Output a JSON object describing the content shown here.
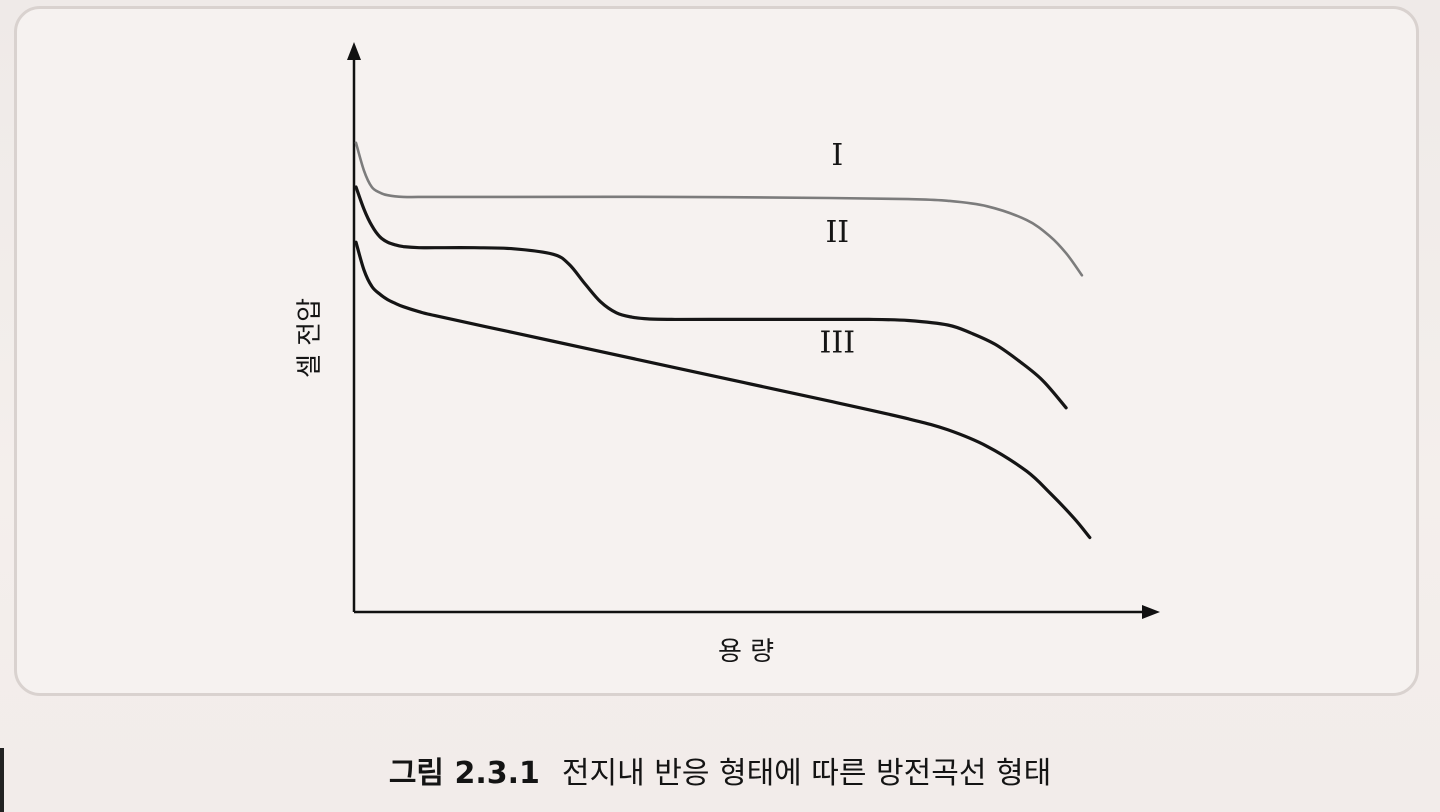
{
  "caption": {
    "number": "그림 2.3.1",
    "text": "전지내 반응 형태에 따른 방전곡선 형태"
  },
  "chart_data": {
    "type": "line",
    "title": "",
    "xlabel": "용 량",
    "ylabel": "셀 전압",
    "xlim": [
      0,
      100
    ],
    "ylim": [
      0,
      100
    ],
    "x_ticks": false,
    "y_ticks": false,
    "grid": false,
    "legend": "none",
    "series": [
      {
        "name": "I",
        "color": "#7c7c7c",
        "x": [
          0,
          1,
          2,
          3,
          4,
          6,
          10,
          20,
          40,
          60,
          70,
          75,
          80,
          85,
          88,
          90,
          92
        ],
        "y": [
          85,
          80,
          77,
          76,
          75.5,
          75.2,
          75.2,
          75.2,
          75.2,
          75.0,
          74.8,
          74.5,
          73.5,
          71.0,
          68.0,
          65.0,
          61.0
        ]
      },
      {
        "name": "II",
        "color": "#161616",
        "x": [
          0,
          1,
          2,
          3,
          4,
          5,
          6,
          8,
          10,
          15,
          20,
          25,
          27,
          29,
          31,
          33,
          35,
          37,
          40,
          45,
          55,
          65,
          70,
          75,
          78,
          81,
          84,
          87,
          90
        ],
        "y": [
          77,
          73,
          70,
          68,
          67,
          66.5,
          66.2,
          66.0,
          66.0,
          66.0,
          65.8,
          64.8,
          63.0,
          59.5,
          56.2,
          54.2,
          53.4,
          53.1,
          53.0,
          53.0,
          53.0,
          53.0,
          52.8,
          52.0,
          50.5,
          48.5,
          45.5,
          42.0,
          37.0
        ]
      },
      {
        "name": "III",
        "color": "#141414",
        "x": [
          0,
          1,
          2,
          3,
          4,
          5,
          6,
          8,
          10,
          20,
          30,
          40,
          50,
          60,
          70,
          75,
          80,
          85,
          88,
          91,
          93
        ],
        "y": [
          67,
          62,
          59,
          57.6,
          56.6,
          55.9,
          55.3,
          54.4,
          53.7,
          50.6,
          47.5,
          44.4,
          41.3,
          38.2,
          35.0,
          33.0,
          30.0,
          25.5,
          21.5,
          17.0,
          13.5
        ]
      }
    ],
    "series_labels": [
      {
        "series": "I",
        "text": "I",
        "x": 61,
        "y": 81
      },
      {
        "series": "II",
        "text": "II",
        "x": 61,
        "y": 67
      },
      {
        "series": "III",
        "text": "III",
        "x": 61,
        "y": 47
      }
    ],
    "axis_color": "#111111"
  }
}
